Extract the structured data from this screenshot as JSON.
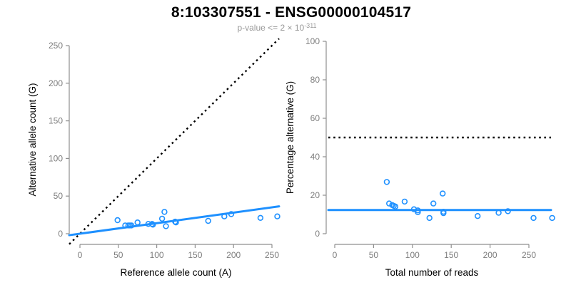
{
  "figure": {
    "title": "8:103307551 - ENSG00000104517",
    "subtitle_prefix": "p-value <= 2 × 10",
    "subtitle_exponent": "-311"
  },
  "colors": {
    "background": "#ffffff",
    "points": "#1E90FF",
    "fit_line": "#1E90FF",
    "dotted_line": "#000000",
    "axis_line": "#8f8f8f",
    "tick_label": "#7d7d7d",
    "axis_title": "#000000",
    "title": "#000000",
    "subtitle": "#999999"
  },
  "chart_data": [
    {
      "type": "scatter",
      "name": "allele-counts",
      "xlabel": "Reference allele count (A)",
      "ylabel": "Alternative allele count (G)",
      "xticks": [
        0,
        50,
        100,
        150,
        200,
        250
      ],
      "yticks": [
        0,
        50,
        100,
        150,
        200,
        250
      ],
      "xlim": [
        0,
        255
      ],
      "ylim": [
        0,
        255
      ],
      "grid": false,
      "marker": "open-circle",
      "points": [
        [
          49,
          18
        ],
        [
          59,
          11
        ],
        [
          63,
          11
        ],
        [
          65,
          11
        ],
        [
          67,
          11
        ],
        [
          75,
          15
        ],
        [
          89,
          13
        ],
        [
          94,
          13
        ],
        [
          95,
          12
        ],
        [
          107,
          20
        ],
        [
          110,
          29
        ],
        [
          112,
          10
        ],
        [
          124,
          16
        ],
        [
          125,
          15
        ],
        [
          167,
          17
        ],
        [
          188,
          23
        ],
        [
          197,
          26
        ],
        [
          235,
          21
        ],
        [
          257,
          23
        ]
      ],
      "lines": [
        {
          "kind": "abline",
          "slope": 1,
          "intercept": 0,
          "style": "dotted",
          "meaning": "identity y=x"
        },
        {
          "kind": "abline",
          "slope": 0.14,
          "intercept": 0,
          "style": "solid",
          "meaning": "fitted allelic ratio"
        }
      ]
    },
    {
      "type": "scatter",
      "name": "percentage-alternative",
      "xlabel": "Total number of reads",
      "ylabel": "Percentage alternative (G)",
      "xticks": [
        0,
        50,
        100,
        150,
        200,
        250
      ],
      "yticks": [
        0,
        20,
        40,
        60,
        80,
        100
      ],
      "xlim": [
        0,
        280
      ],
      "ylim": [
        0,
        100
      ],
      "grid": false,
      "marker": "open-circle",
      "points": [
        [
          67,
          26.9
        ],
        [
          70,
          15.7
        ],
        [
          74,
          14.9
        ],
        [
          76,
          14.5
        ],
        [
          78,
          14.1
        ],
        [
          90,
          16.7
        ],
        [
          102,
          12.7
        ],
        [
          107,
          12.1
        ],
        [
          107,
          11.2
        ],
        [
          127,
          15.7
        ],
        [
          139,
          20.9
        ],
        [
          122,
          8.2
        ],
        [
          140,
          11.4
        ],
        [
          140,
          10.7
        ],
        [
          184,
          9.2
        ],
        [
          211,
          10.9
        ],
        [
          223,
          11.7
        ],
        [
          256,
          8.2
        ],
        [
          280,
          8.2
        ]
      ],
      "lines": [
        {
          "kind": "hline",
          "y": 50,
          "style": "dotted",
          "meaning": "50% null expectation"
        },
        {
          "kind": "hline",
          "y": 12.3,
          "style": "solid",
          "meaning": "mean percentage alternative"
        }
      ]
    }
  ]
}
